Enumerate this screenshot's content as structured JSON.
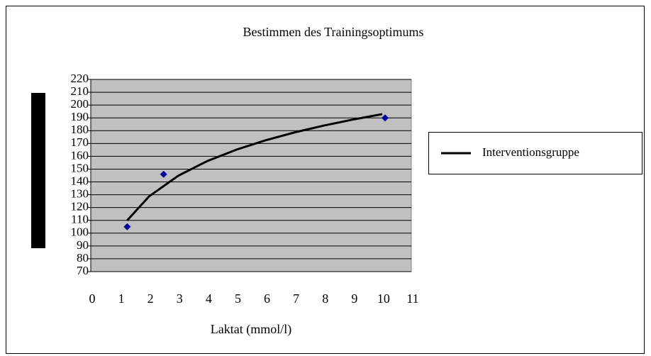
{
  "chart_data": {
    "type": "scatter",
    "title": "Bestimmen des Trainingsoptimums",
    "x_label": "Laktat (mmol/l)",
    "xlim": [
      0,
      11
    ],
    "xticks": [
      0,
      1,
      2,
      3,
      4,
      5,
      6,
      7,
      8,
      9,
      10,
      11
    ],
    "ylim": [
      70,
      220
    ],
    "yticks": [
      70,
      80,
      90,
      100,
      110,
      120,
      130,
      140,
      150,
      160,
      170,
      180,
      190,
      200,
      210,
      220
    ],
    "grid": true,
    "points": {
      "color": "#000099",
      "x": [
        1.25,
        2.5,
        10.1
      ],
      "values": [
        105,
        146,
        190
      ]
    },
    "series": [
      {
        "name": "Interventionsgruppe",
        "color": "#000000",
        "x": [
          1.25,
          2,
          3,
          4,
          5,
          6,
          7,
          8,
          9,
          10
        ],
        "values": [
          110,
          128.7,
          144.8,
          156.3,
          165.2,
          172.5,
          178.7,
          184,
          188.7,
          192.9
        ]
      }
    ],
    "legend": "right"
  }
}
